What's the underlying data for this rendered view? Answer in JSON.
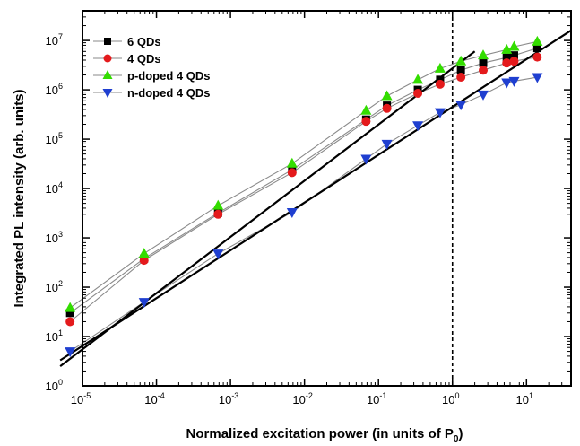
{
  "chart_data": {
    "type": "scatter",
    "xlabel": "Normalized excitation power (in units of P",
    "xlabel_sub": "0",
    "xlabel_end": ")",
    "ylabel": "Integrated PL intensity (arb. units)",
    "xscale": "log",
    "yscale": "log",
    "xlim": [
      1e-05,
      40
    ],
    "ylim": [
      1,
      40000000
    ],
    "x_ticks": [
      {
        "value": 1e-05,
        "base": "10",
        "exp": "-5"
      },
      {
        "value": 0.0001,
        "base": "10",
        "exp": "-4"
      },
      {
        "value": 0.001,
        "base": "10",
        "exp": "-3"
      },
      {
        "value": 0.01,
        "base": "10",
        "exp": "-2"
      },
      {
        "value": 0.1,
        "base": "10",
        "exp": "-1"
      },
      {
        "value": 1,
        "base": "10",
        "exp": "0"
      },
      {
        "value": 10,
        "base": "10",
        "exp": "1"
      }
    ],
    "y_ticks": [
      {
        "value": 1,
        "base": "10",
        "exp": "0"
      },
      {
        "value": 10,
        "base": "10",
        "exp": "1"
      },
      {
        "value": 100,
        "base": "10",
        "exp": "2"
      },
      {
        "value": 1000,
        "base": "10",
        "exp": "3"
      },
      {
        "value": 10000,
        "base": "10",
        "exp": "4"
      },
      {
        "value": 100000,
        "base": "10",
        "exp": "5"
      },
      {
        "value": 1000000,
        "base": "10",
        "exp": "6"
      },
      {
        "value": 10000000,
        "base": "10",
        "exp": "7"
      }
    ],
    "legend_position": "top-left",
    "series": [
      {
        "name": "6 QDs",
        "marker": "square",
        "color": "#000000",
        "x": [
          6.8e-06,
          6.8e-05,
          0.00068,
          0.0068,
          0.068,
          0.13,
          0.34,
          0.68,
          1.3,
          2.6,
          5.4,
          6.8,
          14
        ],
        "y": [
          30,
          380,
          3200,
          24000,
          250000,
          480000,
          1000000,
          1600000,
          2500000,
          3500000,
          4500000,
          5000000,
          7000000
        ]
      },
      {
        "name": "4 QDs",
        "marker": "circle",
        "color": "#e41a1c",
        "x": [
          6.8e-06,
          6.8e-05,
          0.00068,
          0.0068,
          0.068,
          0.13,
          0.34,
          0.68,
          1.3,
          2.6,
          5.4,
          6.8,
          14
        ],
        "y": [
          20,
          350,
          3000,
          21000,
          230000,
          420000,
          850000,
          1300000,
          1800000,
          2500000,
          3500000,
          3800000,
          4600000
        ]
      },
      {
        "name": "p-doped 4 QDs",
        "marker": "triangle-up",
        "color": "#33dd00",
        "x": [
          6.8e-06,
          6.8e-05,
          0.00068,
          0.0068,
          0.068,
          0.13,
          0.34,
          0.68,
          1.3,
          2.6,
          5.4,
          6.8,
          14
        ],
        "y": [
          38,
          480,
          4500,
          32000,
          380000,
          750000,
          1600000,
          2700000,
          3800000,
          5000000,
          6500000,
          7500000,
          9500000
        ]
      },
      {
        "name": "n-doped 4 QDs",
        "marker": "triangle-down",
        "color": "#1f3fd0",
        "x": [
          6.8e-06,
          6.8e-05,
          0.00068,
          0.0068,
          0.068,
          0.13,
          0.34,
          0.68,
          1.3,
          2.6,
          5.4,
          6.8,
          14
        ],
        "y": [
          5,
          50,
          480,
          3300,
          40000,
          80000,
          190000,
          350000,
          500000,
          800000,
          1400000,
          1500000,
          1800000
        ]
      }
    ],
    "fit_lines": [
      {
        "x": [
          5e-06,
          2
        ],
        "y": [
          2.5,
          6000000
        ]
      },
      {
        "x": [
          5e-06,
          40
        ],
        "y": [
          3.3,
          16000000
        ]
      }
    ],
    "reference_line_x": 1
  }
}
